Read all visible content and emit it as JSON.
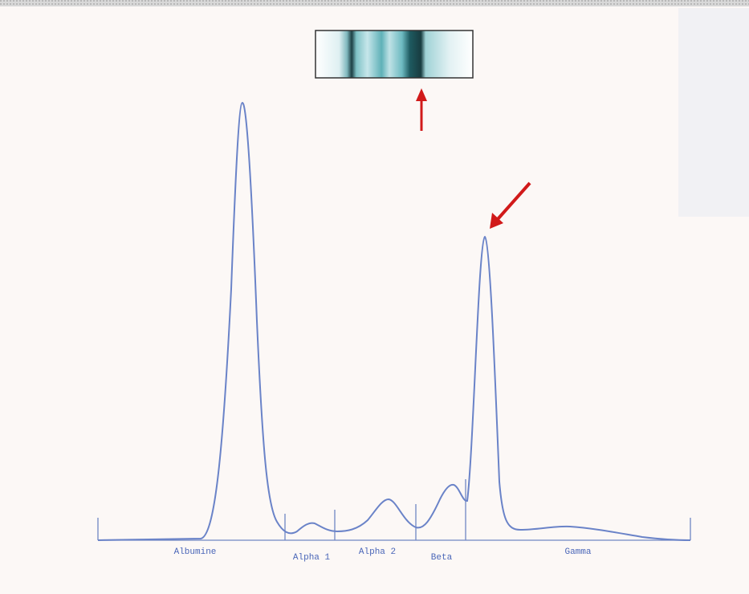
{
  "fractions": [
    "Albumine",
    "Alpha 1",
    "Alpha 2",
    "Beta",
    "Gamma"
  ]
}
